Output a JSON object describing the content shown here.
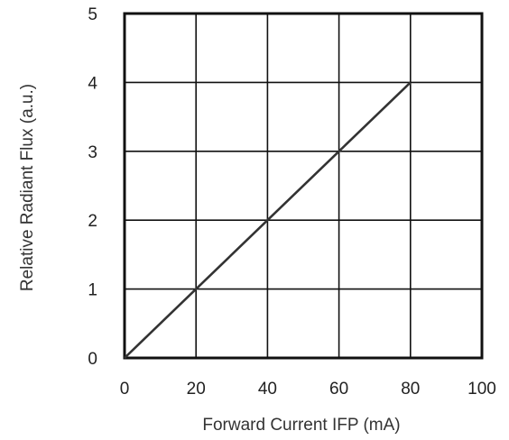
{
  "chart_data": {
    "type": "line",
    "title": "",
    "xlabel": "Forward Current  IFP (mA)",
    "ylabel": "Relative Radiant Flux (a.u.)",
    "xlim": [
      0,
      100
    ],
    "ylim": [
      0,
      5
    ],
    "xticks": [
      0,
      20,
      40,
      60,
      80,
      100
    ],
    "yticks": [
      0,
      1,
      2,
      3,
      4,
      5
    ],
    "grid": true,
    "series": [
      {
        "x": [
          0,
          20,
          40,
          60,
          80
        ],
        "y": [
          0,
          1,
          2,
          3,
          4
        ]
      }
    ],
    "colors": {
      "line": "#333333",
      "grid": "#111111",
      "frame": "#111111"
    }
  }
}
